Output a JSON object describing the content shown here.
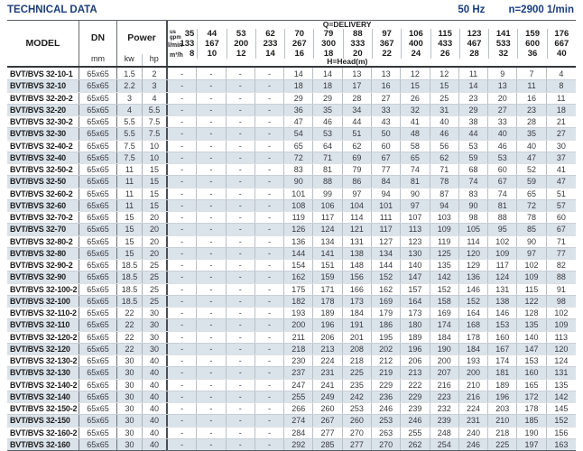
{
  "header": {
    "title": "TECHNICAL DATA",
    "frequency": "50 Hz",
    "speed": "n=2900 1/min"
  },
  "table": {
    "column_headers": {
      "model": "MODEL",
      "dn": "DN",
      "dn_unit": "mm",
      "power": "Power",
      "power_kw": "kw",
      "power_hp": "hp",
      "delivery_label": "Q=DELIVERY",
      "head_label": "H=Head(m)",
      "unit_gpm_top": "us",
      "unit_gpm_bottom": "gpm",
      "unit_lmin": "l/min",
      "unit_m3h": "m³/h"
    },
    "delivery": {
      "us_gpm": [
        "35",
        "44",
        "53",
        "62",
        "70",
        "79",
        "88",
        "97",
        "106",
        "115",
        "123",
        "141",
        "159",
        "176"
      ],
      "l_min": [
        "133",
        "167",
        "200",
        "233",
        "267",
        "300",
        "333",
        "367",
        "400",
        "433",
        "467",
        "533",
        "600",
        "667"
      ],
      "m3_h": [
        "8",
        "10",
        "12",
        "14",
        "16",
        "18",
        "20",
        "22",
        "24",
        "26",
        "28",
        "32",
        "36",
        "40"
      ]
    },
    "rows": [
      {
        "model": "BVT/BVS 32-10-1",
        "dn": "65x65",
        "kw": "1.5",
        "hp": "2",
        "head_m": [
          "-",
          "-",
          "-",
          "-",
          "14",
          "14",
          "13",
          "13",
          "12",
          "12",
          "11",
          "9",
          "7",
          "4"
        ]
      },
      {
        "model": "BVT/BVS 32-10",
        "dn": "65x65",
        "kw": "2.2",
        "hp": "3",
        "head_m": [
          "-",
          "-",
          "-",
          "-",
          "18",
          "18",
          "17",
          "16",
          "15",
          "15",
          "14",
          "13",
          "11",
          "8"
        ]
      },
      {
        "model": "BVT/BVS 32-20-2",
        "dn": "65x65",
        "kw": "3",
        "hp": "4",
        "head_m": [
          "-",
          "-",
          "-",
          "-",
          "29",
          "29",
          "28",
          "27",
          "26",
          "25",
          "23",
          "20",
          "16",
          "11"
        ]
      },
      {
        "model": "BVT/BVS 32-20",
        "dn": "65x65",
        "kw": "4",
        "hp": "5.5",
        "head_m": [
          "-",
          "-",
          "-",
          "-",
          "36",
          "35",
          "34",
          "33",
          "32",
          "31",
          "29",
          "27",
          "23",
          "18"
        ]
      },
      {
        "model": "BVT/BVS 32-30-2",
        "dn": "65x65",
        "kw": "5.5",
        "hp": "7.5",
        "head_m": [
          "-",
          "-",
          "-",
          "-",
          "47",
          "46",
          "44",
          "43",
          "41",
          "40",
          "38",
          "33",
          "28",
          "21"
        ]
      },
      {
        "model": "BVT/BVS 32-30",
        "dn": "65x65",
        "kw": "5.5",
        "hp": "7.5",
        "head_m": [
          "-",
          "-",
          "-",
          "-",
          "54",
          "53",
          "51",
          "50",
          "48",
          "46",
          "44",
          "40",
          "35",
          "27"
        ]
      },
      {
        "model": "BVT/BVS 32-40-2",
        "dn": "65x65",
        "kw": "7.5",
        "hp": "10",
        "head_m": [
          "-",
          "-",
          "-",
          "-",
          "65",
          "64",
          "62",
          "60",
          "58",
          "56",
          "53",
          "46",
          "40",
          "30"
        ]
      },
      {
        "model": "BVT/BVS 32-40",
        "dn": "65x65",
        "kw": "7.5",
        "hp": "10",
        "head_m": [
          "-",
          "-",
          "-",
          "-",
          "72",
          "71",
          "69",
          "67",
          "65",
          "62",
          "59",
          "53",
          "47",
          "37"
        ]
      },
      {
        "model": "BVT/BVS 32-50-2",
        "dn": "65x65",
        "kw": "11",
        "hp": "15",
        "head_m": [
          "-",
          "-",
          "-",
          "-",
          "83",
          "81",
          "79",
          "77",
          "74",
          "71",
          "68",
          "60",
          "52",
          "41"
        ]
      },
      {
        "model": "BVT/BVS 32-50",
        "dn": "65x65",
        "kw": "11",
        "hp": "15",
        "head_m": [
          "-",
          "-",
          "-",
          "-",
          "90",
          "88",
          "86",
          "84",
          "81",
          "78",
          "74",
          "67",
          "59",
          "47"
        ]
      },
      {
        "model": "BVT/BVS 32-60-2",
        "dn": "65x65",
        "kw": "11",
        "hp": "15",
        "head_m": [
          "-",
          "-",
          "-",
          "-",
          "101",
          "99",
          "97",
          "94",
          "90",
          "87",
          "83",
          "74",
          "65",
          "51"
        ]
      },
      {
        "model": "BVT/BVS 32-60",
        "dn": "65x65",
        "kw": "11",
        "hp": "15",
        "head_m": [
          "-",
          "-",
          "-",
          "-",
          "108",
          "106",
          "104",
          "101",
          "97",
          "94",
          "90",
          "81",
          "72",
          "57"
        ]
      },
      {
        "model": "BVT/BVS 32-70-2",
        "dn": "65x65",
        "kw": "15",
        "hp": "20",
        "head_m": [
          "-",
          "-",
          "-",
          "-",
          "119",
          "117",
          "114",
          "111",
          "107",
          "103",
          "98",
          "88",
          "78",
          "60"
        ]
      },
      {
        "model": "BVT/BVS 32-70",
        "dn": "65x65",
        "kw": "15",
        "hp": "20",
        "head_m": [
          "-",
          "-",
          "-",
          "-",
          "126",
          "124",
          "121",
          "117",
          "113",
          "109",
          "105",
          "95",
          "85",
          "67"
        ]
      },
      {
        "model": "BVT/BVS 32-80-2",
        "dn": "65x65",
        "kw": "15",
        "hp": "20",
        "head_m": [
          "-",
          "-",
          "-",
          "-",
          "136",
          "134",
          "131",
          "127",
          "123",
          "119",
          "114",
          "102",
          "90",
          "71"
        ]
      },
      {
        "model": "BVT/BVS 32-80",
        "dn": "65x65",
        "kw": "15",
        "hp": "20",
        "head_m": [
          "-",
          "-",
          "-",
          "-",
          "144",
          "141",
          "138",
          "134",
          "130",
          "125",
          "120",
          "109",
          "97",
          "77"
        ]
      },
      {
        "model": "BVT/BVS 32-90-2",
        "dn": "65x65",
        "kw": "18.5",
        "hp": "25",
        "head_m": [
          "-",
          "-",
          "-",
          "-",
          "154",
          "151",
          "148",
          "144",
          "140",
          "135",
          "129",
          "117",
          "102",
          "82"
        ]
      },
      {
        "model": "BVT/BVS 32-90",
        "dn": "65x65",
        "kw": "18.5",
        "hp": "25",
        "head_m": [
          "-",
          "-",
          "-",
          "-",
          "162",
          "159",
          "156",
          "152",
          "147",
          "142",
          "136",
          "124",
          "109",
          "88"
        ]
      },
      {
        "model": "BVT/BVS 32-100-2",
        "dn": "65x65",
        "kw": "18.5",
        "hp": "25",
        "head_m": [
          "-",
          "-",
          "-",
          "-",
          "175",
          "171",
          "166",
          "162",
          "157",
          "152",
          "146",
          "131",
          "115",
          "91"
        ]
      },
      {
        "model": "BVT/BVS 32-100",
        "dn": "65x65",
        "kw": "18.5",
        "hp": "25",
        "head_m": [
          "-",
          "-",
          "-",
          "-",
          "182",
          "178",
          "173",
          "169",
          "164",
          "158",
          "152",
          "138",
          "122",
          "98"
        ]
      },
      {
        "model": "BVT/BVS 32-110-2",
        "dn": "65x65",
        "kw": "22",
        "hp": "30",
        "head_m": [
          "-",
          "-",
          "-",
          "-",
          "193",
          "189",
          "184",
          "179",
          "173",
          "169",
          "164",
          "146",
          "128",
          "102"
        ]
      },
      {
        "model": "BVT/BVS 32-110",
        "dn": "65x65",
        "kw": "22",
        "hp": "30",
        "head_m": [
          "-",
          "-",
          "-",
          "-",
          "200",
          "196",
          "191",
          "186",
          "180",
          "174",
          "168",
          "153",
          "135",
          "109"
        ]
      },
      {
        "model": "BVT/BVS 32-120-2",
        "dn": "65x65",
        "kw": "22",
        "hp": "30",
        "head_m": [
          "-",
          "-",
          "-",
          "-",
          "211",
          "206",
          "201",
          "195",
          "189",
          "184",
          "178",
          "160",
          "140",
          "113"
        ]
      },
      {
        "model": "BVT/BVS 32-120",
        "dn": "65x65",
        "kw": "22",
        "hp": "30",
        "head_m": [
          "-",
          "-",
          "-",
          "-",
          "218",
          "213",
          "208",
          "202",
          "196",
          "190",
          "184",
          "167",
          "147",
          "120"
        ]
      },
      {
        "model": "BVT/BVS 32-130-2",
        "dn": "65x65",
        "kw": "30",
        "hp": "40",
        "head_m": [
          "-",
          "-",
          "-",
          "-",
          "230",
          "224",
          "218",
          "212",
          "206",
          "200",
          "193",
          "174",
          "153",
          "124"
        ]
      },
      {
        "model": "BVT/BVS 32-130",
        "dn": "65x65",
        "kw": "30",
        "hp": "40",
        "head_m": [
          "-",
          "-",
          "-",
          "-",
          "237",
          "231",
          "225",
          "219",
          "213",
          "207",
          "200",
          "181",
          "160",
          "131"
        ]
      },
      {
        "model": "BVT/BVS 32-140-2",
        "dn": "65x65",
        "kw": "30",
        "hp": "40",
        "head_m": [
          "-",
          "-",
          "-",
          "-",
          "247",
          "241",
          "235",
          "229",
          "222",
          "216",
          "210",
          "189",
          "165",
          "135"
        ]
      },
      {
        "model": "BVT/BVS 32-140",
        "dn": "65x65",
        "kw": "30",
        "hp": "40",
        "head_m": [
          "-",
          "-",
          "-",
          "-",
          "255",
          "249",
          "242",
          "236",
          "229",
          "223",
          "216",
          "196",
          "172",
          "142"
        ]
      },
      {
        "model": "BVT/BVS 32-150-2",
        "dn": "65x65",
        "kw": "30",
        "hp": "40",
        "head_m": [
          "-",
          "-",
          "-",
          "-",
          "266",
          "260",
          "253",
          "246",
          "239",
          "232",
          "224",
          "203",
          "178",
          "145"
        ]
      },
      {
        "model": "BVT/BVS 32-150",
        "dn": "65x65",
        "kw": "30",
        "hp": "40",
        "head_m": [
          "-",
          "-",
          "-",
          "-",
          "274",
          "267",
          "260",
          "253",
          "246",
          "239",
          "231",
          "210",
          "185",
          "152"
        ]
      },
      {
        "model": "BVT/BVS 32-160-2",
        "dn": "65x65",
        "kw": "30",
        "hp": "40",
        "head_m": [
          "-",
          "-",
          "-",
          "-",
          "284",
          "277",
          "270",
          "263",
          "255",
          "248",
          "240",
          "218",
          "190",
          "156"
        ]
      },
      {
        "model": "BVT/BVS 32-160",
        "dn": "65x65",
        "kw": "30",
        "hp": "40",
        "head_m": [
          "-",
          "-",
          "-",
          "-",
          "292",
          "285",
          "277",
          "270",
          "262",
          "254",
          "246",
          "225",
          "197",
          "163"
        ]
      }
    ]
  }
}
